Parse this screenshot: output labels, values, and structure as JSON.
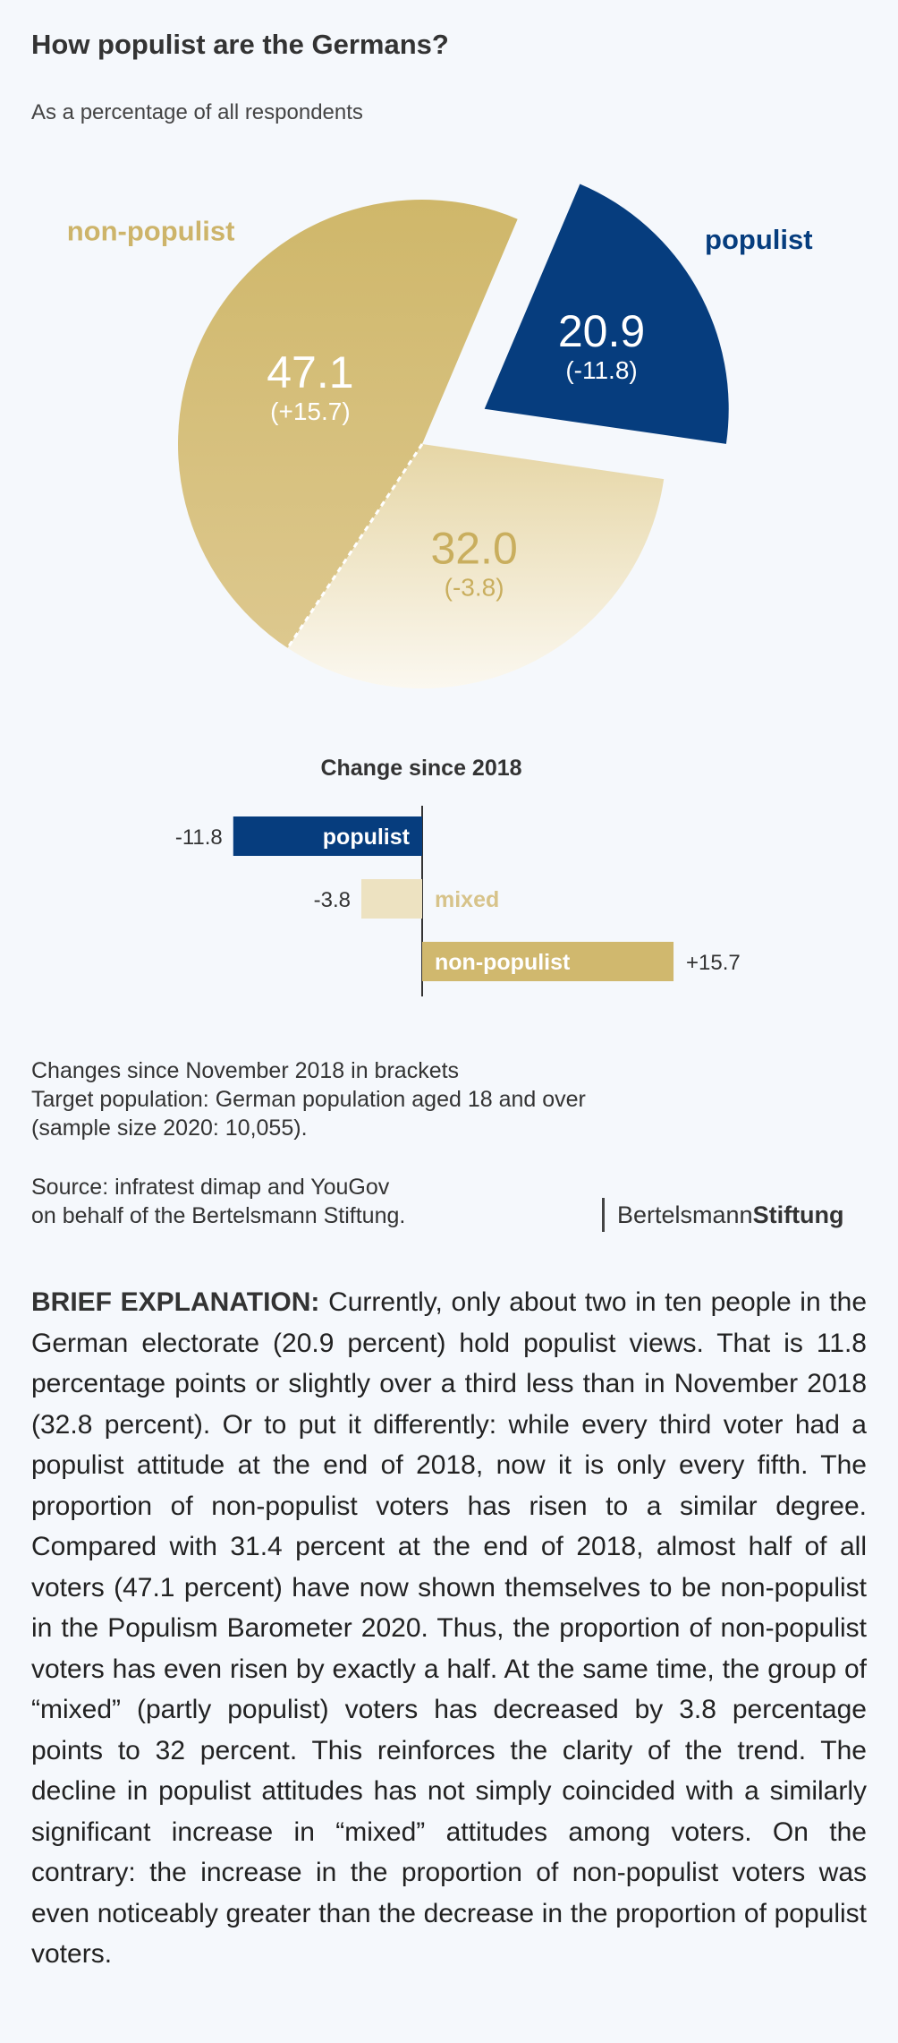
{
  "title": "How populist are the Germans?",
  "subtitle": "As a percentage of all respondents",
  "chart_data": [
    {
      "type": "pie",
      "slices": [
        {
          "label": "populist",
          "value": 20.9,
          "value_label": "20.9",
          "change_label": "(-11.8)",
          "color": "#063d7e"
        },
        {
          "label": "mixed",
          "value": 32.0,
          "value_label": "32.0",
          "change_label": "(-3.8)",
          "color": "#e6d6a6"
        },
        {
          "label": "non-populist",
          "value": 47.1,
          "value_label": "47.1",
          "change_label": "(+15.7)",
          "color": "#d0b86e"
        }
      ]
    },
    {
      "type": "bar",
      "orientation": "horizontal",
      "title": "Change since 2018",
      "categories": [
        "populist",
        "mixed",
        "non-populist"
      ],
      "values": [
        -11.8,
        -3.8,
        15.7
      ],
      "value_labels": [
        "-11.8",
        "-3.8",
        "+15.7"
      ],
      "colors": [
        "#063d7e",
        "#ede2c1",
        "#d0b86e"
      ]
    }
  ],
  "notes": [
    "Changes since November 2018 in brackets",
    "Target population: German population aged 18 and over",
    "(sample size 2020: 10,055)."
  ],
  "source": [
    "Source: infratest dimap and YouGov",
    "on behalf of the Bertelsmann Stiftung."
  ],
  "logo": {
    "part1": "Bertelsmann",
    "part2": "Stiftung"
  },
  "explanation": {
    "lead": "BRIEF EXPLANATION:",
    "text": " Currently, only about two in ten people in the German electorate (20.9 percent) hold populist views. That is 11.8 percentage points or slightly over a third less than in November 2018 (32.8 percent). Or to put it differently: while every third voter had a populist attitude at the end of 2018, now it is only every fifth. The proportion of non-populist voters has risen to a similar degree. Compared with 31.4 percent at the end of 2018, almost half of all voters (47.1 percent) have now shown themselves to be non-populist in the Populism Barometer 2020. Thus, the proportion of non-populist voters has even risen by exactly a half. At the same time, the group of “mixed” (partly populist) voters has decreased by 3.8 percentage points to 32 percent. This reinforces the clarity of the trend. The decline in populist attitudes has not simply coincided with a similarly significant increase in “mixed” attitudes among voters. On the contrary: the increase in the proportion of non-populist voters was even noticeably greater than the decrease in the proportion of populist voters."
  }
}
